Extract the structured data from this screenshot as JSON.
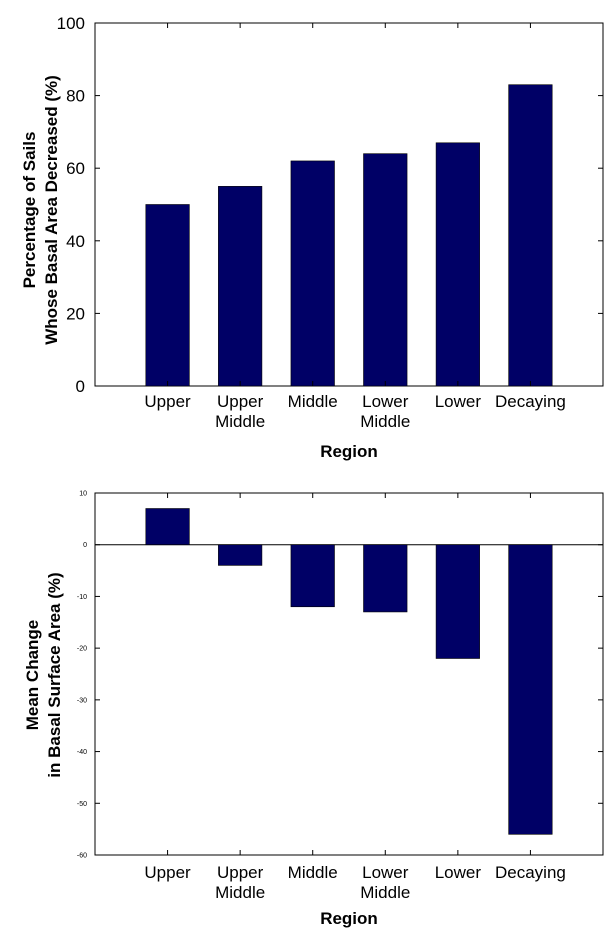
{
  "chart_data": [
    {
      "type": "bar",
      "categories": [
        "Upper",
        "Upper\nMiddle",
        "Middle",
        "Lower\nMiddle",
        "Lower",
        "Decaying"
      ],
      "values": [
        50,
        55,
        62,
        64,
        67,
        83
      ],
      "xlabel": "Region",
      "ylabel_lines": [
        "Percentage of Sails",
        "Whose Basal Area Decreased (%)"
      ],
      "ylim": [
        0,
        100
      ],
      "yticks": [
        0,
        20,
        40,
        60,
        80,
        100
      ],
      "grid": false,
      "colors": {
        "bar": "#000066",
        "axis": "#000000"
      }
    },
    {
      "type": "bar",
      "categories": [
        "Upper",
        "Upper\nMiddle",
        "Middle",
        "Lower\nMiddle",
        "Lower",
        "Decaying"
      ],
      "values": [
        7,
        -4,
        -12,
        -13,
        -22,
        -56
      ],
      "xlabel": "Region",
      "ylabel_lines": [
        "Mean Change",
        "in Basal Surface Area (%)"
      ],
      "ylim": [
        -60,
        10
      ],
      "yticks": [
        -60,
        -50,
        -40,
        -30,
        -20,
        -10,
        0,
        10
      ],
      "grid": false,
      "zero_line": true,
      "colors": {
        "bar": "#000066",
        "axis": "#000000"
      }
    }
  ]
}
